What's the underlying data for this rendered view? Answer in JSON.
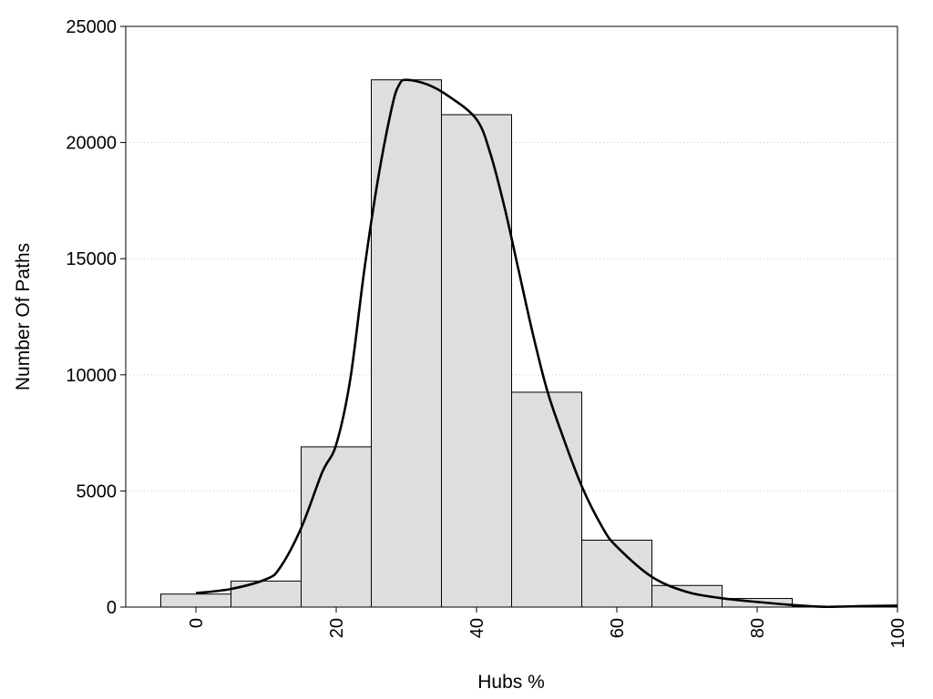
{
  "chart_data": {
    "type": "bar",
    "title": "",
    "xlabel": "Hubs %",
    "ylabel": "Number Of Paths",
    "xlim": [
      -10,
      100
    ],
    "ylim": [
      0,
      25000
    ],
    "grid": true,
    "xticks": [
      "0",
      "20",
      "40",
      "60",
      "80",
      "100"
    ],
    "yticks": [
      "0",
      "5000",
      "10000",
      "15000",
      "20000",
      "25000"
    ],
    "bar_width": 10,
    "bars": [
      {
        "x": 0,
        "value": 560
      },
      {
        "x": 10,
        "value": 1120
      },
      {
        "x": 20,
        "value": 6900
      },
      {
        "x": 30,
        "value": 22700
      },
      {
        "x": 40,
        "value": 21200
      },
      {
        "x": 50,
        "value": 9250
      },
      {
        "x": 60,
        "value": 2880
      },
      {
        "x": 70,
        "value": 930
      },
      {
        "x": 80,
        "value": 370
      },
      {
        "x": 90,
        "value": 30
      },
      {
        "x": 100,
        "value": 60
      }
    ],
    "density_curve": {
      "x": [
        0,
        5,
        10,
        12,
        15,
        18,
        20,
        22,
        24,
        26,
        28,
        29,
        30,
        33,
        36,
        40,
        42,
        44,
        46,
        48,
        50,
        52,
        55,
        58,
        60,
        65,
        70,
        75,
        80,
        85,
        88,
        90,
        92,
        95,
        100
      ],
      "y": [
        600,
        780,
        1200,
        1700,
        3400,
        5800,
        7000,
        9800,
        14500,
        18500,
        21600,
        22500,
        22700,
        22500,
        22000,
        21000,
        19500,
        17200,
        14500,
        11800,
        9400,
        7600,
        5200,
        3400,
        2600,
        1300,
        650,
        380,
        220,
        90,
        30,
        10,
        20,
        40,
        60
      ]
    }
  }
}
